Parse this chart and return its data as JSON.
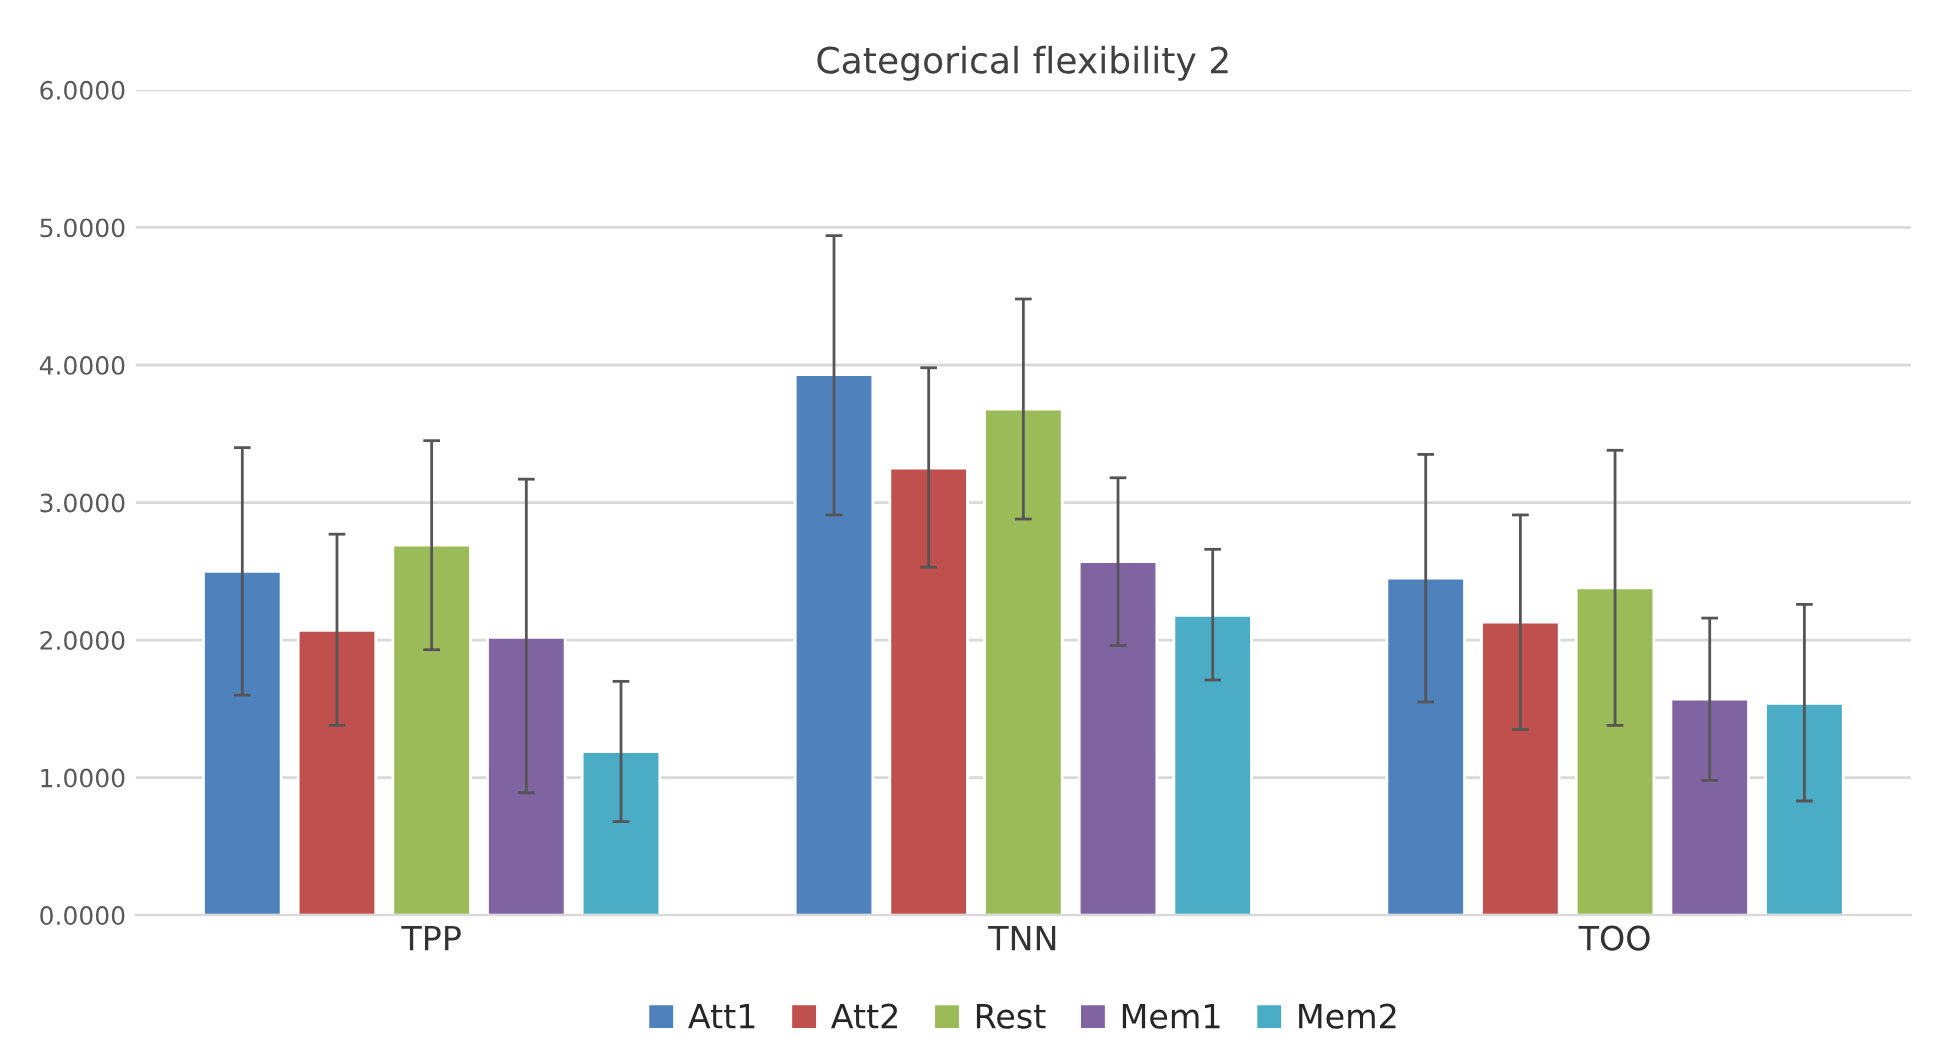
{
  "chart_data": {
    "type": "bar",
    "title": "Categorical flexibility 2",
    "categories": [
      "TPP",
      "TNN",
      "TOO"
    ],
    "series": [
      {
        "name": "Att1",
        "color": "#4f81bd",
        "values": [
          2.5,
          3.93,
          2.45
        ],
        "errors": [
          [
            1.6,
            3.4
          ],
          [
            2.91,
            4.94
          ],
          [
            1.55,
            3.35
          ]
        ]
      },
      {
        "name": "Att2",
        "color": "#c0504d",
        "values": [
          2.07,
          3.25,
          2.13
        ],
        "errors": [
          [
            1.38,
            2.77
          ],
          [
            2.53,
            3.98
          ],
          [
            1.35,
            2.91
          ]
        ]
      },
      {
        "name": "Rest",
        "color": "#9bbb59",
        "values": [
          2.69,
          3.68,
          2.38
        ],
        "errors": [
          [
            1.93,
            3.45
          ],
          [
            2.88,
            4.48
          ],
          [
            1.38,
            3.38
          ]
        ]
      },
      {
        "name": "Mem1",
        "color": "#8064a2",
        "values": [
          2.02,
          2.57,
          1.57
        ],
        "errors": [
          [
            0.89,
            3.17
          ],
          [
            1.96,
            3.18
          ],
          [
            0.98,
            2.16
          ]
        ]
      },
      {
        "name": "Mem2",
        "color": "#4bacc6",
        "values": [
          1.19,
          2.18,
          1.54
        ],
        "errors": [
          [
            0.68,
            1.7
          ],
          [
            1.71,
            2.66
          ],
          [
            0.83,
            2.26
          ]
        ]
      }
    ],
    "ylim": [
      0,
      6
    ],
    "yticks": [
      {
        "value": 0,
        "label": "0.0000"
      },
      {
        "value": 1,
        "label": "1.0000"
      },
      {
        "value": 2,
        "label": "2.0000"
      },
      {
        "value": 3,
        "label": "3.0000"
      },
      {
        "value": 4,
        "label": "4.0000"
      },
      {
        "value": 5,
        "label": "5.0000"
      },
      {
        "value": 6,
        "label": "6.0000"
      }
    ],
    "grid": "y",
    "legend": "bottom"
  }
}
